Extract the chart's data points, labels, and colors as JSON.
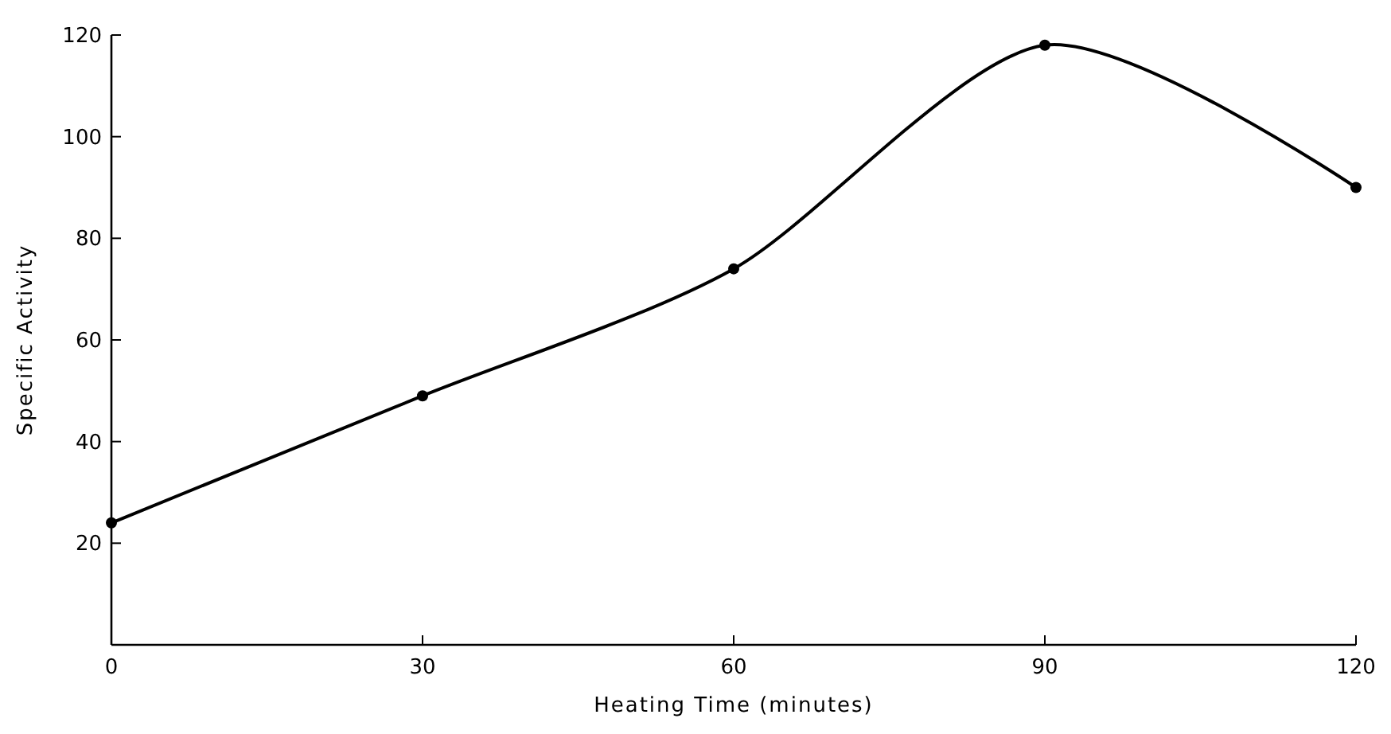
{
  "chart_data": {
    "type": "line",
    "xlabel": "Heating Time (minutes)",
    "ylabel": "Specific Activity",
    "x": [
      0,
      30,
      60,
      90,
      120
    ],
    "series": [
      {
        "color": "#000000",
        "values": [
          24,
          49,
          74,
          118,
          90
        ]
      }
    ],
    "xlim": [
      0,
      120
    ],
    "xticks": [
      0,
      30,
      60,
      90,
      120
    ],
    "ylim": [
      0,
      120
    ],
    "yticks": [
      20,
      40,
      60,
      80,
      100,
      120
    ],
    "marker": "circle",
    "line_style": "solid",
    "grid": false
  }
}
